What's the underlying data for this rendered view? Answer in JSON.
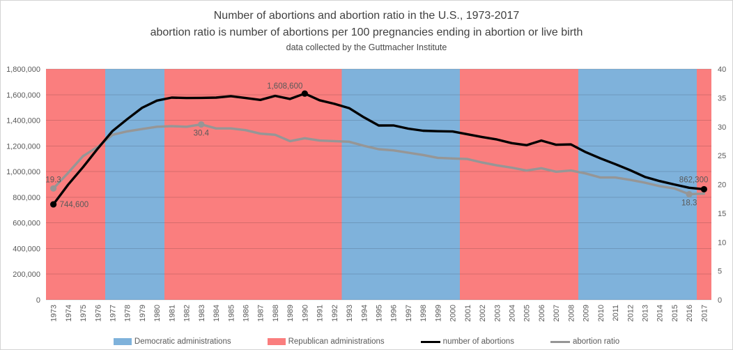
{
  "title": {
    "line1": "Number of abortions and abortion ratio in the U.S., 1973-2017",
    "line2": "abortion ratio is number of abortions per 100 pregnancies ending in abortion or live birth",
    "line3": "data collected by the Guttmacher Institute"
  },
  "legend": {
    "items": [
      {
        "label": "Democratic administrations",
        "type": "box",
        "color": "#7FB2DB"
      },
      {
        "label": "Republican administrations",
        "type": "box",
        "color": "#FA7E7E"
      },
      {
        "label": "number of abortions",
        "type": "line",
        "color": "#000000"
      },
      {
        "label": "abortion ratio",
        "type": "line",
        "color": "#969696"
      }
    ]
  },
  "chart_data": {
    "type": "line",
    "x": [
      1973,
      1974,
      1975,
      1976,
      1977,
      1978,
      1979,
      1980,
      1981,
      1982,
      1983,
      1984,
      1985,
      1986,
      1987,
      1988,
      1989,
      1990,
      1991,
      1992,
      1993,
      1994,
      1995,
      1996,
      1997,
      1998,
      1999,
      2000,
      2001,
      2002,
      2003,
      2004,
      2005,
      2006,
      2007,
      2008,
      2009,
      2010,
      2011,
      2012,
      2013,
      2014,
      2015,
      2016,
      2017
    ],
    "series": [
      {
        "name": "number of abortions",
        "axis": "left",
        "color": "#000000",
        "values": [
          744600,
          898600,
          1034200,
          1179300,
          1316700,
          1409600,
          1497700,
          1553900,
          1577300,
          1573900,
          1575000,
          1577200,
          1588600,
          1574000,
          1559100,
          1590800,
          1566900,
          1608600,
          1556500,
          1528900,
          1495000,
          1423000,
          1359400,
          1360200,
          1335000,
          1319000,
          1314800,
          1313000,
          1291000,
          1269000,
          1250000,
          1222100,
          1206200,
          1242200,
          1209600,
          1212400,
          1151600,
          1102700,
          1058500,
          1011000,
          958700,
          926200,
          899500,
          874100,
          862300
        ]
      },
      {
        "name": "abortion ratio",
        "axis": "right",
        "color": "#969696",
        "values": [
          19.3,
          22.0,
          24.9,
          26.5,
          28.6,
          29.2,
          29.6,
          30.0,
          30.1,
          30.0,
          30.4,
          29.7,
          29.7,
          29.4,
          28.8,
          28.6,
          27.5,
          28.0,
          27.6,
          27.5,
          27.4,
          26.7,
          26.1,
          25.9,
          25.5,
          25.1,
          24.6,
          24.5,
          24.4,
          23.8,
          23.3,
          22.9,
          22.4,
          22.8,
          22.2,
          22.4,
          21.9,
          21.2,
          21.2,
          20.8,
          20.3,
          19.7,
          19.3,
          18.3,
          18.4
        ]
      }
    ],
    "left_axis": {
      "min": 0,
      "max": 1800000,
      "step": 200000,
      "ticks": [
        "0",
        "200,000",
        "400,000",
        "600,000",
        "800,000",
        "1,000,000",
        "1,200,000",
        "1,400,000",
        "1,600,000",
        "1,800,000"
      ]
    },
    "right_axis": {
      "min": 0,
      "max": 40,
      "step": 5,
      "ticks": [
        "0",
        "5",
        "10",
        "15",
        "20",
        "25",
        "30",
        "35",
        "40"
      ]
    },
    "administrations": [
      {
        "party": "R",
        "from": 1973,
        "to": 1976
      },
      {
        "party": "D",
        "from": 1977,
        "to": 1980
      },
      {
        "party": "R",
        "from": 1981,
        "to": 1992
      },
      {
        "party": "D",
        "from": 1993,
        "to": 2000
      },
      {
        "party": "R",
        "from": 2001,
        "to": 2008
      },
      {
        "party": "D",
        "from": 2009,
        "to": 2016
      },
      {
        "party": "R",
        "from": 2017,
        "to": 2017
      }
    ],
    "band_colors": {
      "D": "#7FB2DB",
      "R": "#FA7E7E"
    },
    "annotations": [
      {
        "series": 0,
        "year": 1973,
        "label": "744,600",
        "placement": "right"
      },
      {
        "series": 0,
        "year": 1990,
        "label": "1,608,600",
        "placement": "above-end"
      },
      {
        "series": 0,
        "year": 2017,
        "label": "862,300",
        "placement": "above-right-end"
      },
      {
        "series": 1,
        "year": 1973,
        "label": "19.3",
        "placement": "above"
      },
      {
        "series": 1,
        "year": 1983,
        "label": "30.4",
        "placement": "below"
      },
      {
        "series": 1,
        "year": 2016,
        "label": "18.3",
        "placement": "below"
      }
    ],
    "grid": true,
    "legend_position": "bottom",
    "text_color": "#595959"
  }
}
